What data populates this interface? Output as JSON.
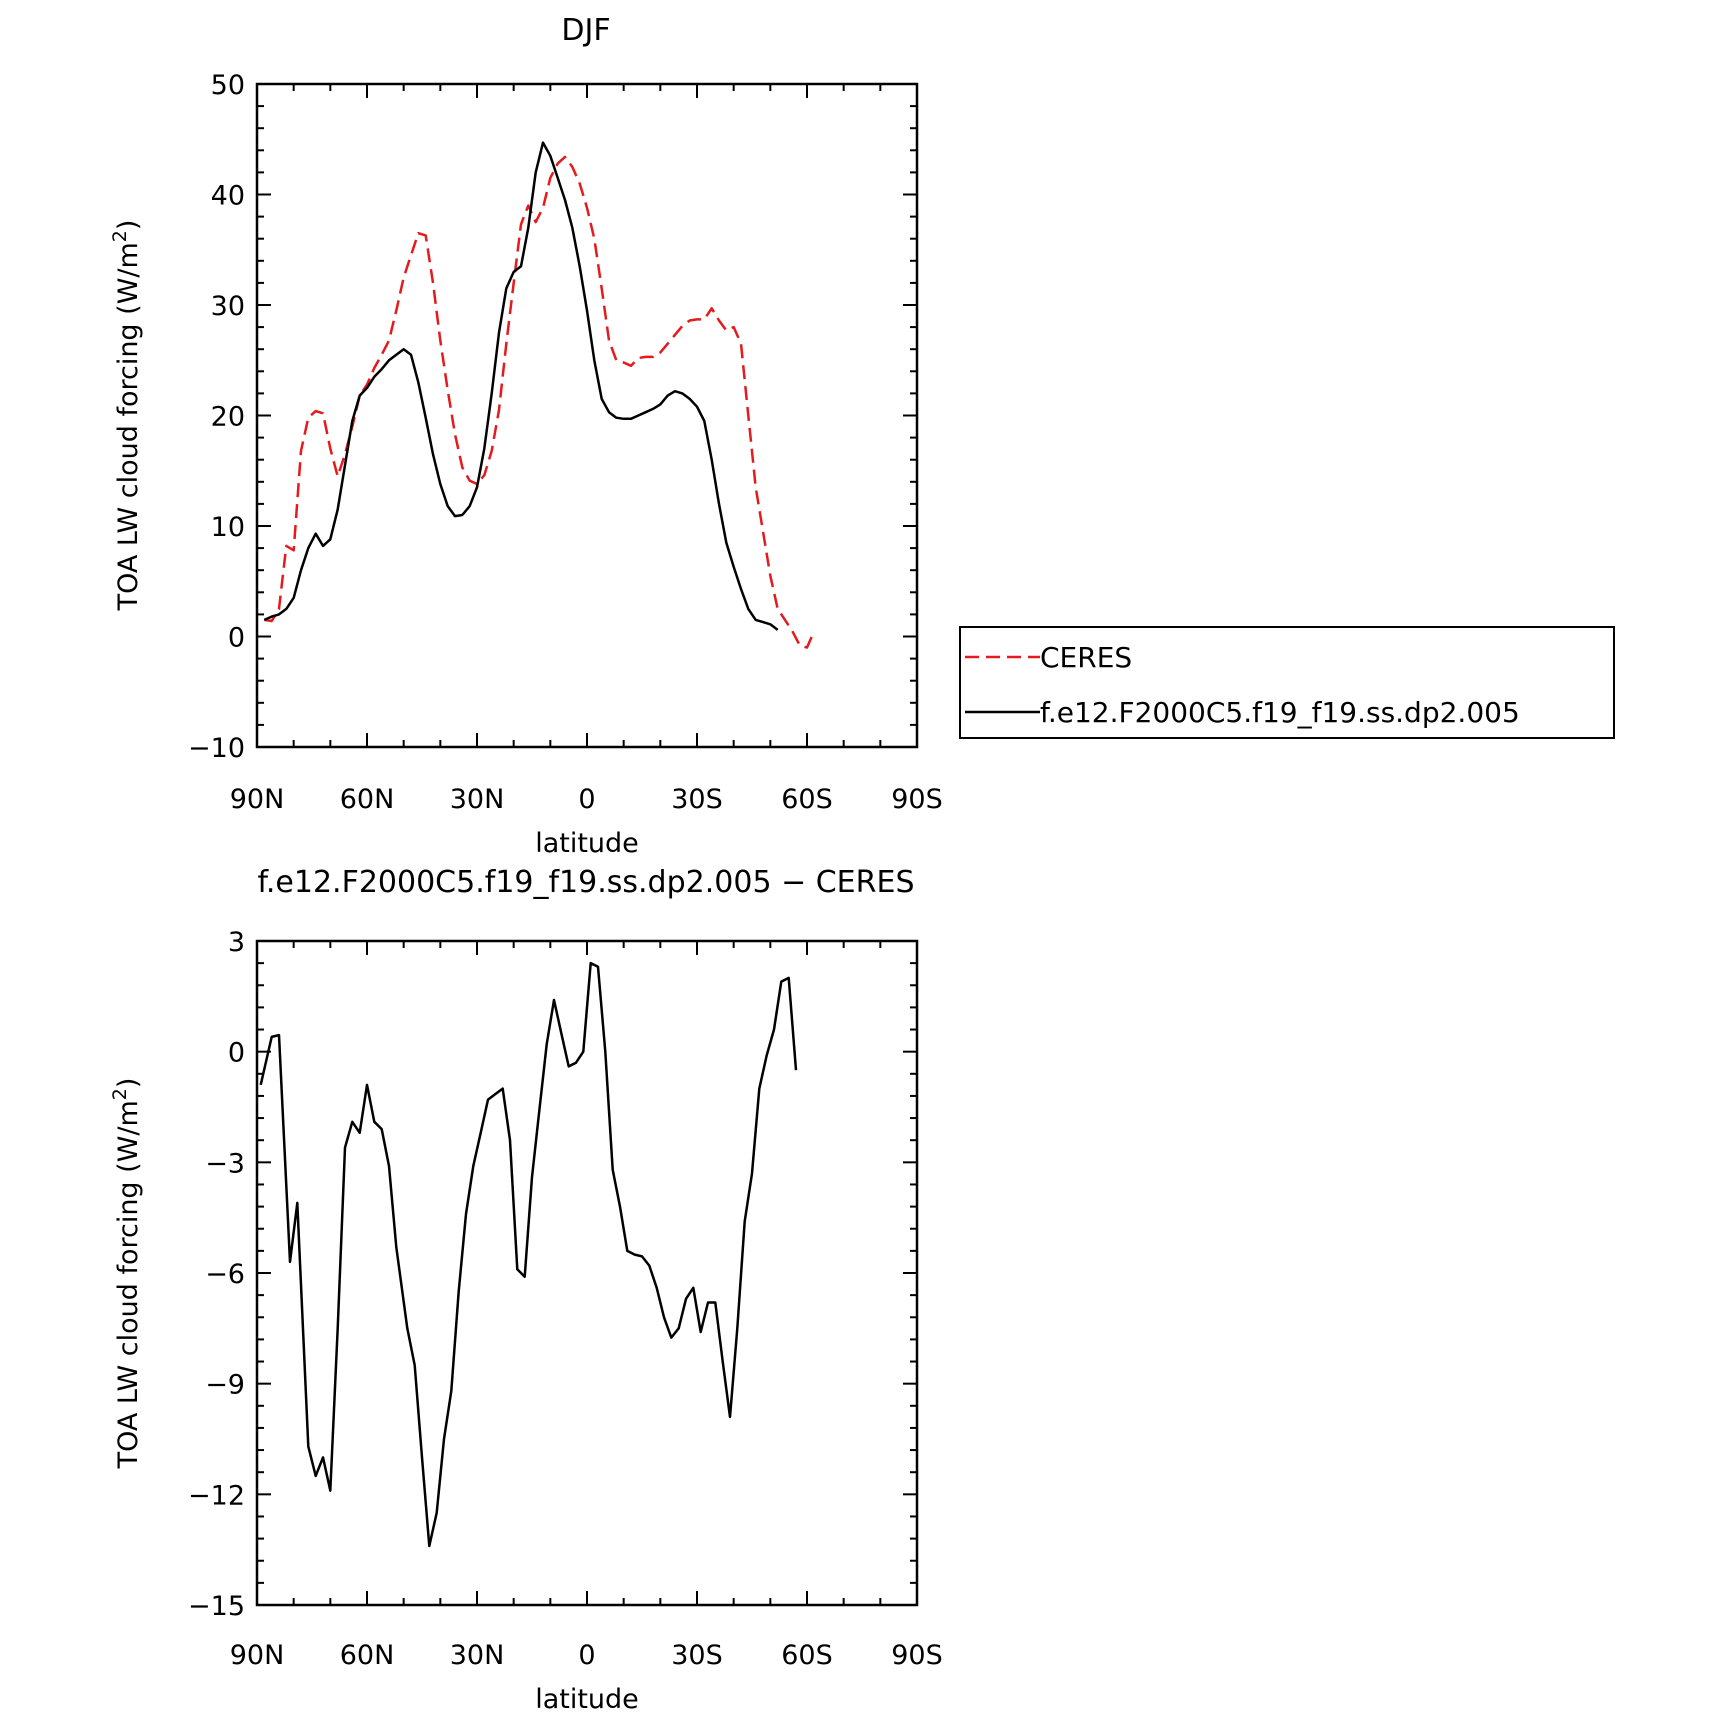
{
  "chart_data": [
    {
      "type": "line",
      "title": "DJF",
      "xlabel": "latitude",
      "ylabel": "TOA LW cloud forcing (W/m²)",
      "ylabel_parts": {
        "main": "TOA LW cloud forcing (W/m",
        "sup": "2",
        "tail": ")"
      },
      "xlim": [
        -90,
        90
      ],
      "ylim": [
        -10,
        50
      ],
      "x_ticks": [
        {
          "value": -90,
          "label": "90N"
        },
        {
          "value": -60,
          "label": "60N"
        },
        {
          "value": -30,
          "label": "30N"
        },
        {
          "value": 0,
          "label": "0"
        },
        {
          "value": 30,
          "label": "30S"
        },
        {
          "value": 60,
          "label": "60S"
        },
        {
          "value": 90,
          "label": "90S"
        }
      ],
      "y_ticks": [
        {
          "value": -10,
          "label": "−10"
        },
        {
          "value": 0,
          "label": "0"
        },
        {
          "value": 10,
          "label": "10"
        },
        {
          "value": 20,
          "label": "20"
        },
        {
          "value": 30,
          "label": "30"
        },
        {
          "value": 40,
          "label": "40"
        },
        {
          "value": 50,
          "label": "50"
        }
      ],
      "legend": {
        "placement": "right"
      },
      "series": [
        {
          "name": "CERES",
          "color": "#e41a1c",
          "dash": "dashed",
          "points": [
            [
              -88,
              1.5
            ],
            [
              -86,
              1.4
            ],
            [
              -84,
              2.5
            ],
            [
              -82,
              8.2
            ],
            [
              -80,
              7.8
            ],
            [
              -78,
              16.8
            ],
            [
              -76,
              19.8
            ],
            [
              -74,
              20.4
            ],
            [
              -72,
              20.2
            ],
            [
              -70,
              17.0
            ],
            [
              -68,
              14.5
            ],
            [
              -66,
              16.5
            ],
            [
              -64,
              19.0
            ],
            [
              -62,
              21.8
            ],
            [
              -60,
              22.8
            ],
            [
              -58,
              24.3
            ],
            [
              -56,
              25.5
            ],
            [
              -54,
              26.8
            ],
            [
              -52,
              29.5
            ],
            [
              -50,
              32.5
            ],
            [
              -48,
              34.5
            ],
            [
              -46,
              36.5
            ],
            [
              -44,
              36.3
            ],
            [
              -42,
              32.0
            ],
            [
              -40,
              26.8
            ],
            [
              -38,
              22.3
            ],
            [
              -36,
              18.3
            ],
            [
              -34,
              15.3
            ],
            [
              -32,
              14.1
            ],
            [
              -30,
              13.8
            ],
            [
              -28,
              14.6
            ],
            [
              -26,
              16.8
            ],
            [
              -24,
              20.5
            ],
            [
              -22,
              26.5
            ],
            [
              -20,
              32.0
            ],
            [
              -18,
              37.3
            ],
            [
              -16,
              39.0
            ],
            [
              -14,
              37.5
            ],
            [
              -12,
              38.8
            ],
            [
              -10,
              41.5
            ],
            [
              -8,
              42.8
            ],
            [
              -6,
              43.4
            ],
            [
              -4,
              42.5
            ],
            [
              -2,
              41.0
            ],
            [
              0,
              38.8
            ],
            [
              2,
              36.0
            ],
            [
              4,
              31.5
            ],
            [
              6,
              26.8
            ],
            [
              8,
              25.0
            ],
            [
              10,
              24.8
            ],
            [
              12,
              24.5
            ],
            [
              14,
              25.2
            ],
            [
              16,
              25.3
            ],
            [
              18,
              25.3
            ],
            [
              20,
              25.7
            ],
            [
              22,
              26.5
            ],
            [
              24,
              27.3
            ],
            [
              26,
              28.1
            ],
            [
              28,
              28.6
            ],
            [
              30,
              28.7
            ],
            [
              32,
              28.7
            ],
            [
              34,
              29.7
            ],
            [
              36,
              28.6
            ],
            [
              38,
              27.7
            ],
            [
              40,
              28.0
            ],
            [
              42,
              26.5
            ],
            [
              44,
              20.0
            ],
            [
              46,
              13.5
            ],
            [
              48,
              9.5
            ],
            [
              50,
              5.5
            ],
            [
              52,
              2.5
            ],
            [
              54,
              1.5
            ],
            [
              56,
              0.5
            ],
            [
              58,
              -0.8
            ],
            [
              60,
              -1.0
            ],
            [
              62,
              0.5
            ]
          ]
        },
        {
          "name": "f.e12.F2000C5.f19_f19.ss.dp2.005",
          "color": "#000000",
          "dash": "solid",
          "points": [
            [
              -88,
              1.5
            ],
            [
              -86,
              1.8
            ],
            [
              -84,
              2.0
            ],
            [
              -82,
              2.5
            ],
            [
              -80,
              3.5
            ],
            [
              -78,
              6.0
            ],
            [
              -76,
              8.0
            ],
            [
              -74,
              9.3
            ],
            [
              -72,
              8.2
            ],
            [
              -70,
              8.8
            ],
            [
              -68,
              11.5
            ],
            [
              -66,
              15.5
            ],
            [
              -64,
              19.5
            ],
            [
              -62,
              21.8
            ],
            [
              -60,
              22.5
            ],
            [
              -58,
              23.5
            ],
            [
              -56,
              24.2
            ],
            [
              -54,
              25.0
            ],
            [
              -52,
              25.5
            ],
            [
              -50,
              26.0
            ],
            [
              -48,
              25.5
            ],
            [
              -46,
              23.0
            ],
            [
              -44,
              19.8
            ],
            [
              -42,
              16.5
            ],
            [
              -40,
              13.8
            ],
            [
              -38,
              11.8
            ],
            [
              -36,
              10.9
            ],
            [
              -34,
              11.0
            ],
            [
              -32,
              11.8
            ],
            [
              -30,
              13.5
            ],
            [
              -28,
              17.0
            ],
            [
              -26,
              22.0
            ],
            [
              -24,
              27.5
            ],
            [
              -22,
              31.5
            ],
            [
              -20,
              33.0
            ],
            [
              -18,
              33.5
            ],
            [
              -16,
              37.0
            ],
            [
              -14,
              42.0
            ],
            [
              -12,
              44.7
            ],
            [
              -10,
              43.5
            ],
            [
              -8,
              41.5
            ],
            [
              -6,
              39.5
            ],
            [
              -4,
              37.0
            ],
            [
              -2,
              33.5
            ],
            [
              0,
              29.5
            ],
            [
              2,
              25.0
            ],
            [
              4,
              21.5
            ],
            [
              6,
              20.3
            ],
            [
              8,
              19.8
            ],
            [
              10,
              19.7
            ],
            [
              12,
              19.7
            ],
            [
              14,
              20.0
            ],
            [
              16,
              20.3
            ],
            [
              18,
              20.6
            ],
            [
              20,
              21.0
            ],
            [
              22,
              21.8
            ],
            [
              24,
              22.2
            ],
            [
              26,
              22.0
            ],
            [
              28,
              21.5
            ],
            [
              30,
              20.8
            ],
            [
              32,
              19.5
            ],
            [
              34,
              16.0
            ],
            [
              36,
              12.0
            ],
            [
              38,
              8.5
            ],
            [
              40,
              6.3
            ],
            [
              42,
              4.3
            ],
            [
              44,
              2.5
            ],
            [
              46,
              1.5
            ],
            [
              48,
              1.3
            ],
            [
              50,
              1.1
            ],
            [
              52,
              0.6
            ]
          ]
        }
      ]
    },
    {
      "type": "line",
      "title": "f.e12.F2000C5.f19_f19.ss.dp2.005 − CERES",
      "xlabel": "latitude",
      "ylabel": "TOA LW cloud forcing (W/m²)",
      "ylabel_parts": {
        "main": "TOA LW cloud forcing (W/m",
        "sup": "2",
        "tail": ")"
      },
      "xlim": [
        -90,
        90
      ],
      "ylim": [
        -15,
        3
      ],
      "x_ticks": [
        {
          "value": -90,
          "label": "90N"
        },
        {
          "value": -60,
          "label": "60N"
        },
        {
          "value": -30,
          "label": "30N"
        },
        {
          "value": 0,
          "label": "0"
        },
        {
          "value": 30,
          "label": "30S"
        },
        {
          "value": 60,
          "label": "60S"
        },
        {
          "value": 90,
          "label": "90S"
        }
      ],
      "y_ticks": [
        {
          "value": -15,
          "label": "−15"
        },
        {
          "value": -12,
          "label": "−12"
        },
        {
          "value": -9,
          "label": "−9"
        },
        {
          "value": -6,
          "label": "−6"
        },
        {
          "value": -3,
          "label": "−3"
        },
        {
          "value": 0,
          "label": "0"
        },
        {
          "value": 3,
          "label": "3"
        }
      ],
      "series": [
        {
          "color": "#000000",
          "dash": "solid",
          "points": [
            [
              -89,
              -0.9
            ],
            [
              -86,
              0.4
            ],
            [
              -84,
              0.45
            ],
            [
              -81,
              -5.7
            ],
            [
              -79,
              -4.1
            ],
            [
              -76,
              -10.7
            ],
            [
              -74,
              -11.5
            ],
            [
              -72,
              -11.0
            ],
            [
              -70,
              -11.9
            ],
            [
              -68,
              -7.5
            ],
            [
              -66,
              -2.6
            ],
            [
              -64,
              -1.9
            ],
            [
              -62,
              -2.2
            ],
            [
              -60,
              -0.9
            ],
            [
              -58,
              -1.9
            ],
            [
              -56,
              -2.1
            ],
            [
              -54,
              -3.1
            ],
            [
              -52,
              -5.3
            ],
            [
              -49,
              -7.5
            ],
            [
              -47,
              -8.5
            ],
            [
              -45,
              -11.0
            ],
            [
              -43,
              -13.4
            ],
            [
              -41,
              -12.5
            ],
            [
              -39,
              -10.5
            ],
            [
              -37,
              -9.2
            ],
            [
              -35,
              -6.5
            ],
            [
              -33,
              -4.4
            ],
            [
              -31,
              -3.1
            ],
            [
              -29,
              -2.2
            ],
            [
              -27,
              -1.3
            ],
            [
              -25,
              -1.15
            ],
            [
              -23,
              -1.0
            ],
            [
              -21,
              -2.4
            ],
            [
              -19,
              -5.9
            ],
            [
              -17,
              -6.1
            ],
            [
              -15,
              -3.4
            ],
            [
              -13,
              -1.6
            ],
            [
              -11,
              0.2
            ],
            [
              -9,
              1.4
            ],
            [
              -7,
              0.5
            ],
            [
              -5,
              -0.4
            ],
            [
              -3,
              -0.3
            ],
            [
              -1,
              0.0
            ],
            [
              1,
              2.4
            ],
            [
              3,
              2.3
            ],
            [
              5,
              0.0
            ],
            [
              7,
              -3.2
            ],
            [
              9,
              -4.2
            ],
            [
              11,
              -5.4
            ],
            [
              13,
              -5.5
            ],
            [
              15,
              -5.55
            ],
            [
              17,
              -5.8
            ],
            [
              19,
              -6.4
            ],
            [
              21,
              -7.2
            ],
            [
              23,
              -7.75
            ],
            [
              25,
              -7.5
            ],
            [
              27,
              -6.7
            ],
            [
              29,
              -6.4
            ],
            [
              31,
              -7.6
            ],
            [
              33,
              -6.8
            ],
            [
              35,
              -6.8
            ],
            [
              37,
              -8.4
            ],
            [
              39,
              -9.9
            ],
            [
              41,
              -7.5
            ],
            [
              43,
              -4.6
            ],
            [
              45,
              -3.3
            ],
            [
              47,
              -1.0
            ],
            [
              49,
              -0.1
            ],
            [
              51,
              0.6
            ],
            [
              53,
              1.9
            ],
            [
              55,
              2.0
            ],
            [
              57,
              -0.5
            ]
          ]
        }
      ]
    }
  ]
}
